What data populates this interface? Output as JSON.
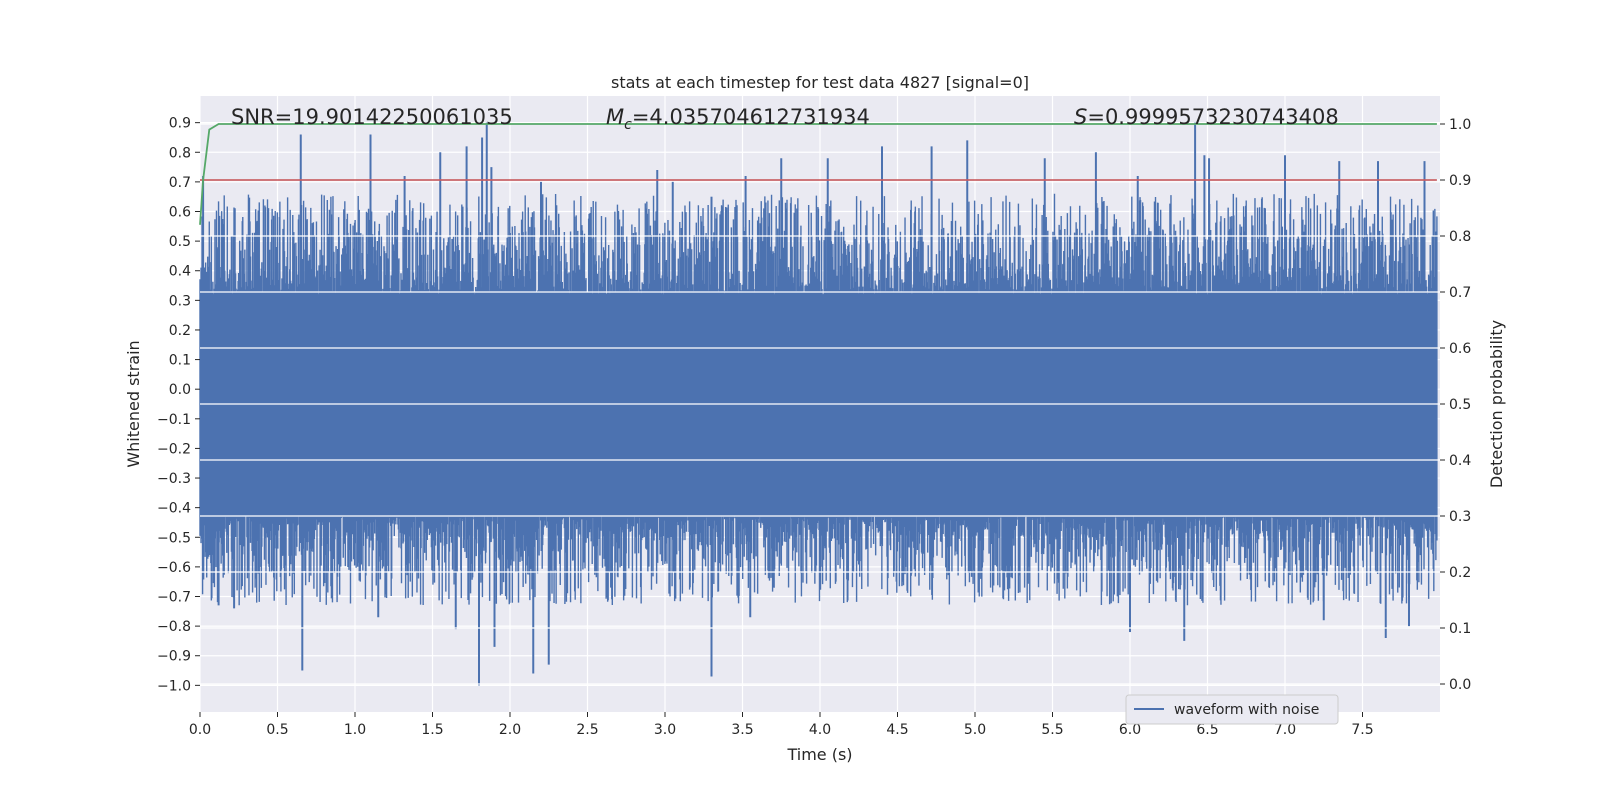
{
  "chart_data": {
    "type": "line",
    "title": "stats at each timestep for test data 4827 [signal=0]",
    "xlabel": "Time (s)",
    "ylabel_left": "Whitened strain",
    "ylabel_right": "Detection probability",
    "xlim": [
      0.0,
      8.0
    ],
    "ylim_left": [
      -1.09,
      0.99
    ],
    "ylim_right": [
      -0.05,
      1.05
    ],
    "x_ticks": [
      "0.0",
      "0.5",
      "1.0",
      "1.5",
      "2.0",
      "2.5",
      "3.0",
      "3.5",
      "4.0",
      "4.5",
      "5.0",
      "5.5",
      "6.0",
      "6.5",
      "7.0",
      "7.5"
    ],
    "x_tick_values": [
      0.0,
      0.5,
      1.0,
      1.5,
      2.0,
      2.5,
      3.0,
      3.5,
      4.0,
      4.5,
      5.0,
      5.5,
      6.0,
      6.5,
      7.0,
      7.5
    ],
    "y_left_ticks": [
      "0.9",
      "0.8",
      "0.7",
      "0.6",
      "0.5",
      "0.4",
      "0.3",
      "0.2",
      "0.1",
      "0.0",
      "−0.1",
      "−0.2",
      "−0.3",
      "−0.4",
      "−0.5",
      "−0.6",
      "−0.7",
      "−0.8",
      "−0.9",
      "−1.0"
    ],
    "y_left_tick_values": [
      0.9,
      0.8,
      0.7,
      0.6,
      0.5,
      0.4,
      0.3,
      0.2,
      0.1,
      0.0,
      -0.1,
      -0.2,
      -0.3,
      -0.4,
      -0.5,
      -0.6,
      -0.7,
      -0.8,
      -0.9,
      -1.0
    ],
    "y_right_ticks": [
      "1.0",
      "0.9",
      "0.8",
      "0.7",
      "0.6",
      "0.5",
      "0.4",
      "0.3",
      "0.2",
      "0.1",
      "0.0"
    ],
    "y_right_tick_values": [
      1.0,
      0.9,
      0.8,
      0.7,
      0.6,
      0.5,
      0.4,
      0.3,
      0.2,
      0.1,
      0.0
    ],
    "grid": true,
    "legend": {
      "position": "lower-right",
      "entries": [
        "waveform with noise"
      ]
    },
    "annotations": {
      "snr": "SNR=19.90142250061035",
      "mc_prefix": "M",
      "mc_sub": "c",
      "mc_value": "=4.035704612731934",
      "s_prefix": "S",
      "s_value": "=0.9999573230743408"
    },
    "series": [
      {
        "name": "waveform with noise",
        "axis": "left",
        "color": "#4c72b0",
        "description": "whitened noise strain, dense samples over 0-8 s",
        "envelope": {
          "core_low": -0.43,
          "core_high": 0.32,
          "min": -1.0,
          "max": 0.9
        },
        "spike_times": [
          0.02,
          0.65,
          0.68,
          1.1,
          1.32,
          1.55,
          1.72,
          1.82,
          1.85,
          1.88,
          2.2,
          2.95,
          3.05,
          3.3,
          3.52,
          3.75,
          4.05,
          4.4,
          4.72,
          4.95,
          5.45,
          5.78,
          6.05,
          6.42,
          6.48,
          6.51,
          7.0,
          7.35,
          7.6,
          7.9
        ],
        "spike_top_values": [
          0.72,
          0.86,
          0.4,
          0.86,
          0.72,
          0.8,
          0.82,
          0.85,
          0.9,
          0.75,
          0.7,
          0.74,
          0.7,
          0.65,
          0.72,
          0.78,
          0.78,
          0.82,
          0.82,
          0.84,
          0.78,
          0.8,
          0.72,
          0.9,
          0.79,
          0.78,
          0.79,
          0.77,
          0.77,
          0.77
        ],
        "dip_times": [
          0.12,
          0.22,
          0.66,
          1.15,
          1.65,
          1.8,
          1.9,
          2.15,
          2.25,
          3.3,
          3.55,
          6.0,
          6.35,
          7.25,
          7.65,
          7.8
        ],
        "dip_bottom_values": [
          -0.73,
          -0.74,
          -0.95,
          -0.77,
          -0.81,
          -1.0,
          -0.87,
          -0.96,
          -0.93,
          -0.97,
          -0.77,
          -0.82,
          -0.85,
          -0.78,
          -0.84,
          -0.8
        ]
      },
      {
        "name": "detection probability",
        "axis": "right",
        "color": "#55a868",
        "x": [
          0.0,
          0.02,
          0.06,
          0.12,
          7.98
        ],
        "values": [
          0.82,
          0.9,
          0.99,
          1.0,
          1.0
        ]
      },
      {
        "name": "threshold",
        "axis": "right",
        "color": "#c44e52",
        "x": [
          0.0,
          7.98
        ],
        "values": [
          0.9,
          0.9
        ]
      }
    ]
  }
}
